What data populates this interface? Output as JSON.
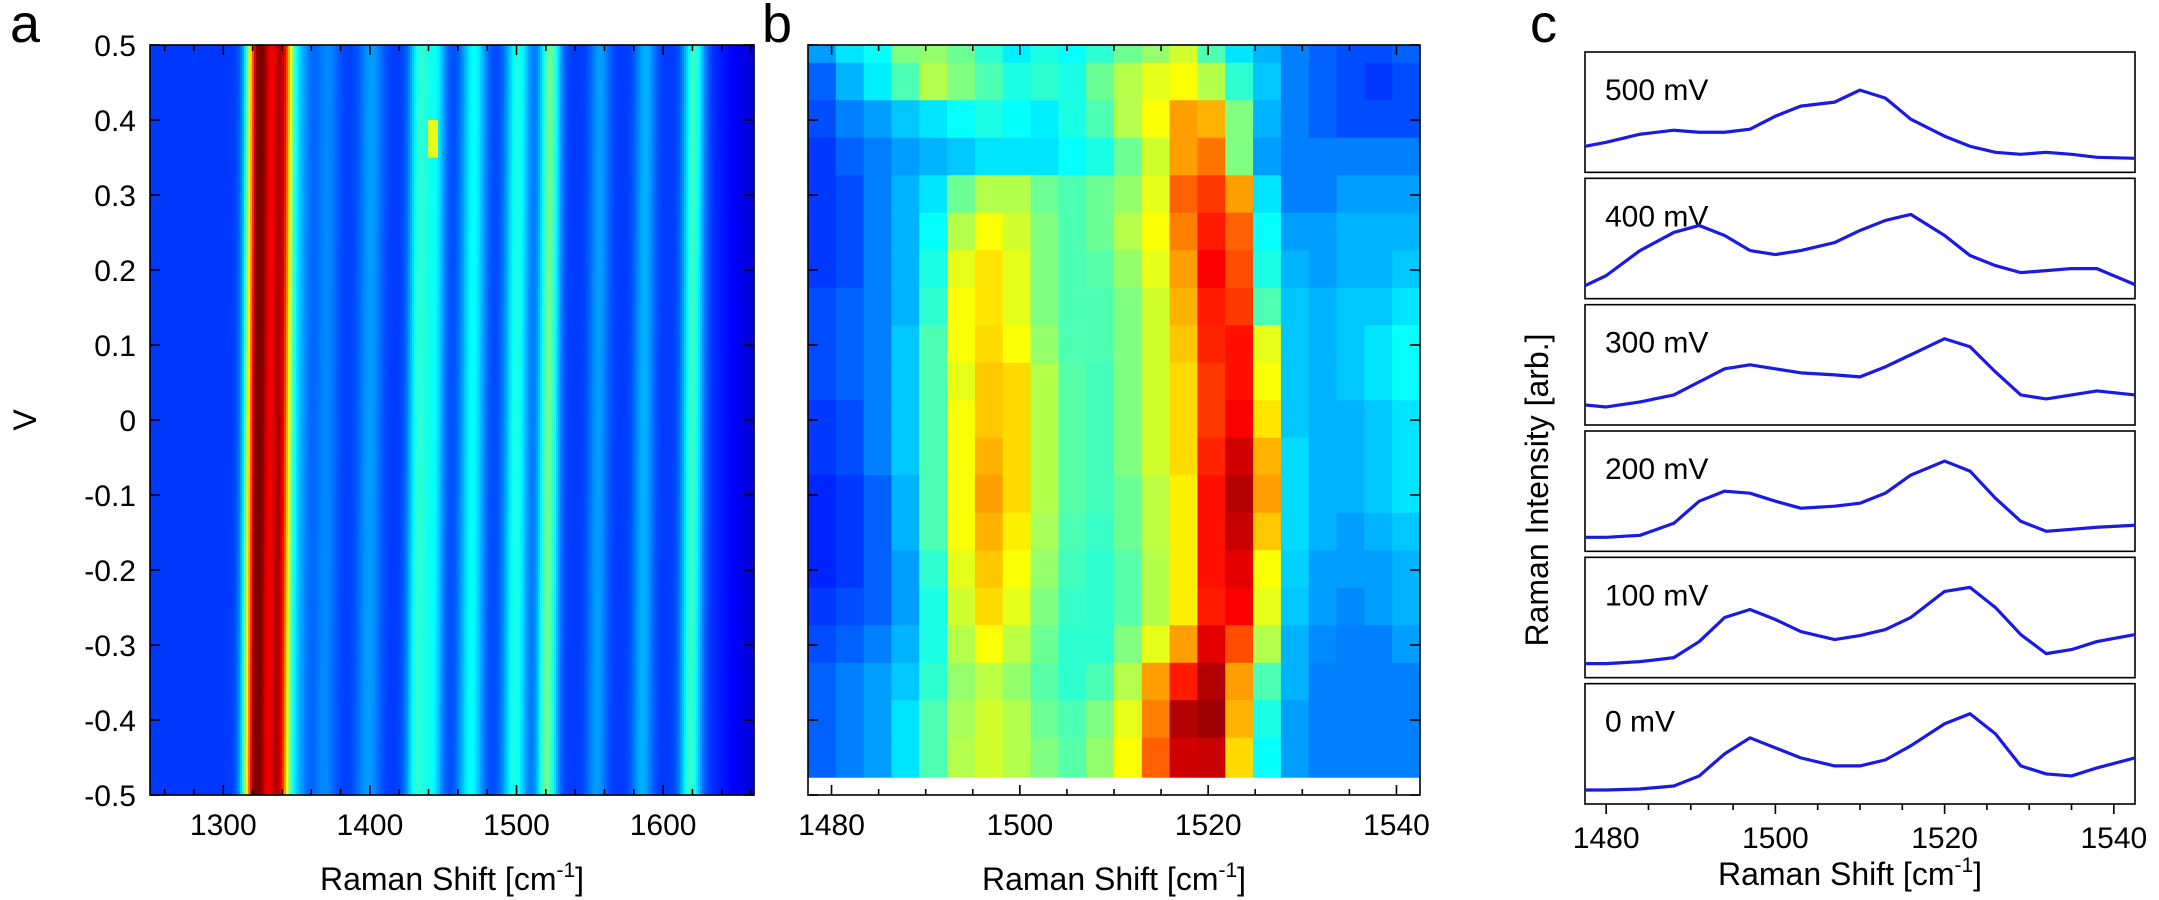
{
  "panels": {
    "a": "a",
    "b": "b",
    "c": "c"
  },
  "chart_data": [
    {
      "type": "heatmap",
      "panel": "a",
      "xlabel": "Raman Shift [cm⁻¹]",
      "xlabel_text": "Raman Shift [cm",
      "xlabel_sup": "-1",
      "xlabel_close": "]",
      "ylabel": "V",
      "xlim": [
        1250,
        1662
      ],
      "ylim": [
        -0.5,
        0.5
      ],
      "xticks": [
        1300,
        1400,
        1500,
        1600
      ],
      "xticklabels": [
        "1300",
        "1400",
        "1500",
        "1600"
      ],
      "yticks": [
        0.5,
        0.4,
        0.3,
        0.2,
        0.1,
        0,
        -0.1,
        -0.2,
        -0.3,
        -0.4,
        -0.5
      ],
      "yticklabels": [
        "0.5",
        "0.4",
        "0.3",
        "0.2",
        "0.1",
        "0",
        "-0.1",
        "-0.2",
        "-0.3",
        "-0.4",
        "-0.5"
      ],
      "colormap": "jet",
      "background_level": 0.18,
      "peaks": [
        {
          "x": 1322,
          "width": 5,
          "amplitude": 0.55
        },
        {
          "x": 1330,
          "width": 7,
          "amplitude": 0.5
        },
        {
          "x": 1340,
          "width": 5,
          "amplitude": 0.55
        },
        {
          "x": 1352,
          "width": 5,
          "amplitude": 0.1
        },
        {
          "x": 1370,
          "width": 6,
          "amplitude": 0.08
        },
        {
          "x": 1400,
          "width": 6,
          "amplitude": 0.1
        },
        {
          "x": 1433,
          "width": 5,
          "amplitude": 0.22
        },
        {
          "x": 1444,
          "width": 5,
          "amplitude": 0.18
        },
        {
          "x": 1470,
          "width": 6,
          "amplitude": 0.2
        },
        {
          "x": 1500,
          "width": 6,
          "amplitude": 0.22
        },
        {
          "x": 1522,
          "width": 5,
          "amplitude": 0.3
        },
        {
          "x": 1556,
          "width": 5,
          "amplitude": 0.1
        },
        {
          "x": 1587,
          "width": 5,
          "amplitude": 0.12
        },
        {
          "x": 1620,
          "width": 5,
          "amplitude": 0.25
        }
      ],
      "hotspot": {
        "x": 1443,
        "y": 0.37,
        "value": 0.6
      }
    },
    {
      "type": "heatmap",
      "panel": "b",
      "xlabel": "Raman Shift [cm⁻¹]",
      "xlabel_text": "Raman Shift [cm",
      "xlabel_sup": "-1",
      "xlabel_close": "]",
      "xlim": [
        1477.5,
        1542.5
      ],
      "ylim": [
        -0.5,
        0.5
      ],
      "xticks": [
        1480,
        1500,
        1520,
        1540
      ],
      "xticklabels": [
        "1480",
        "1500",
        "1520",
        "1540"
      ],
      "colormap": "jet",
      "columns_x": [
        1479,
        1482,
        1485,
        1488,
        1491,
        1494,
        1497,
        1500,
        1503,
        1506,
        1509,
        1512,
        1515,
        1518,
        1521,
        1524,
        1527,
        1530,
        1533,
        1536,
        1539,
        1542
      ],
      "rows_voltage": [
        0.5,
        0.45,
        0.4,
        0.35,
        0.3,
        0.25,
        0.2,
        0.15,
        0.1,
        0.05,
        0,
        -0.05,
        -0.1,
        -0.15,
        -0.2,
        -0.25,
        -0.3,
        -0.35,
        -0.4,
        -0.45
      ],
      "values": [
        [
          0.28,
          0.35,
          0.38,
          0.5,
          0.52,
          0.48,
          0.42,
          0.36,
          0.4,
          0.38,
          0.42,
          0.48,
          0.52,
          0.58,
          0.45,
          0.35,
          0.3,
          0.25,
          0.22,
          0.2,
          0.2,
          0.22
        ],
        [
          0.22,
          0.3,
          0.36,
          0.45,
          0.55,
          0.5,
          0.45,
          0.4,
          0.42,
          0.4,
          0.48,
          0.55,
          0.6,
          0.62,
          0.55,
          0.42,
          0.32,
          0.25,
          0.22,
          0.2,
          0.18,
          0.2
        ],
        [
          0.2,
          0.25,
          0.28,
          0.32,
          0.35,
          0.38,
          0.4,
          0.38,
          0.36,
          0.4,
          0.45,
          0.55,
          0.62,
          0.72,
          0.7,
          0.5,
          0.3,
          0.25,
          0.22,
          0.2,
          0.2,
          0.2
        ],
        [
          0.18,
          0.22,
          0.25,
          0.28,
          0.3,
          0.32,
          0.35,
          0.35,
          0.35,
          0.38,
          0.4,
          0.48,
          0.58,
          0.72,
          0.76,
          0.5,
          0.28,
          0.25,
          0.25,
          0.25,
          0.25,
          0.25
        ],
        [
          0.18,
          0.2,
          0.25,
          0.3,
          0.35,
          0.48,
          0.55,
          0.55,
          0.48,
          0.45,
          0.48,
          0.52,
          0.6,
          0.78,
          0.82,
          0.72,
          0.35,
          0.25,
          0.25,
          0.28,
          0.28,
          0.28
        ],
        [
          0.18,
          0.2,
          0.25,
          0.3,
          0.38,
          0.55,
          0.62,
          0.58,
          0.5,
          0.45,
          0.48,
          0.55,
          0.62,
          0.75,
          0.85,
          0.78,
          0.38,
          0.28,
          0.28,
          0.3,
          0.3,
          0.3
        ],
        [
          0.18,
          0.2,
          0.25,
          0.3,
          0.4,
          0.6,
          0.65,
          0.6,
          0.5,
          0.45,
          0.46,
          0.52,
          0.6,
          0.72,
          0.88,
          0.8,
          0.4,
          0.3,
          0.28,
          0.3,
          0.3,
          0.32
        ],
        [
          0.2,
          0.22,
          0.25,
          0.3,
          0.42,
          0.62,
          0.65,
          0.6,
          0.5,
          0.45,
          0.45,
          0.5,
          0.58,
          0.7,
          0.85,
          0.82,
          0.45,
          0.32,
          0.3,
          0.32,
          0.32,
          0.35
        ],
        [
          0.2,
          0.22,
          0.25,
          0.32,
          0.45,
          0.62,
          0.66,
          0.62,
          0.52,
          0.45,
          0.45,
          0.5,
          0.58,
          0.68,
          0.84,
          0.86,
          0.6,
          0.32,
          0.3,
          0.32,
          0.35,
          0.38
        ],
        [
          0.2,
          0.22,
          0.25,
          0.32,
          0.45,
          0.6,
          0.68,
          0.66,
          0.55,
          0.46,
          0.44,
          0.5,
          0.58,
          0.66,
          0.82,
          0.86,
          0.62,
          0.32,
          0.3,
          0.32,
          0.35,
          0.38
        ],
        [
          0.18,
          0.2,
          0.25,
          0.32,
          0.45,
          0.62,
          0.68,
          0.66,
          0.55,
          0.46,
          0.44,
          0.5,
          0.58,
          0.66,
          0.82,
          0.88,
          0.65,
          0.32,
          0.3,
          0.3,
          0.32,
          0.35
        ],
        [
          0.18,
          0.2,
          0.25,
          0.32,
          0.45,
          0.62,
          0.7,
          0.66,
          0.55,
          0.46,
          0.44,
          0.5,
          0.58,
          0.66,
          0.84,
          0.92,
          0.7,
          0.34,
          0.3,
          0.3,
          0.32,
          0.35
        ],
        [
          0.16,
          0.18,
          0.22,
          0.3,
          0.45,
          0.62,
          0.72,
          0.66,
          0.55,
          0.46,
          0.44,
          0.48,
          0.56,
          0.64,
          0.86,
          0.95,
          0.72,
          0.34,
          0.3,
          0.3,
          0.32,
          0.35
        ],
        [
          0.16,
          0.18,
          0.22,
          0.3,
          0.45,
          0.62,
          0.7,
          0.64,
          0.54,
          0.45,
          0.43,
          0.48,
          0.56,
          0.64,
          0.86,
          0.93,
          0.68,
          0.34,
          0.3,
          0.28,
          0.3,
          0.32
        ],
        [
          0.16,
          0.18,
          0.22,
          0.28,
          0.42,
          0.6,
          0.68,
          0.62,
          0.52,
          0.44,
          0.42,
          0.46,
          0.55,
          0.64,
          0.86,
          0.9,
          0.62,
          0.33,
          0.28,
          0.28,
          0.28,
          0.3
        ],
        [
          0.18,
          0.2,
          0.22,
          0.28,
          0.4,
          0.58,
          0.66,
          0.6,
          0.5,
          0.43,
          0.42,
          0.46,
          0.55,
          0.64,
          0.85,
          0.88,
          0.6,
          0.32,
          0.28,
          0.26,
          0.28,
          0.3
        ],
        [
          0.2,
          0.22,
          0.25,
          0.3,
          0.4,
          0.55,
          0.62,
          0.56,
          0.48,
          0.42,
          0.42,
          0.5,
          0.6,
          0.72,
          0.9,
          0.8,
          0.55,
          0.3,
          0.26,
          0.25,
          0.25,
          0.28
        ],
        [
          0.22,
          0.25,
          0.28,
          0.32,
          0.42,
          0.52,
          0.56,
          0.52,
          0.46,
          0.42,
          0.45,
          0.55,
          0.72,
          0.85,
          0.95,
          0.72,
          0.45,
          0.3,
          0.25,
          0.25,
          0.25,
          0.25
        ],
        [
          0.22,
          0.25,
          0.28,
          0.35,
          0.45,
          0.54,
          0.58,
          0.55,
          0.48,
          0.45,
          0.5,
          0.6,
          0.75,
          0.95,
          0.97,
          0.7,
          0.4,
          0.28,
          0.25,
          0.25,
          0.25,
          0.25
        ],
        [
          0.22,
          0.25,
          0.28,
          0.35,
          0.45,
          0.55,
          0.58,
          0.55,
          0.5,
          0.46,
          0.52,
          0.62,
          0.78,
          0.92,
          0.93,
          0.66,
          0.38,
          0.28,
          0.25,
          0.25,
          0.25,
          0.25
        ]
      ]
    },
    {
      "type": "line",
      "panel": "c",
      "xlabel": "Raman Shift [cm⁻¹]",
      "xlabel_text": "Raman Shift [cm",
      "xlabel_sup": "-1",
      "xlabel_close": "]",
      "ylabel": "Raman Intensity [arb.]",
      "xlim": [
        1477.5,
        1542.5
      ],
      "xticks": [
        1480,
        1500,
        1520,
        1540
      ],
      "xticklabels": [
        "1480",
        "1500",
        "1520",
        "1540"
      ],
      "x": [
        1477.5,
        1480,
        1484,
        1488,
        1491,
        1494,
        1497,
        1500,
        1503,
        1507,
        1510,
        1513,
        1516,
        1520,
        1523,
        1526,
        1529,
        1532,
        1535,
        1538,
        1542.5
      ],
      "series": [
        {
          "name": "500 mV",
          "values": [
            0.18,
            0.22,
            0.3,
            0.34,
            0.32,
            0.32,
            0.35,
            0.48,
            0.58,
            0.62,
            0.74,
            0.66,
            0.45,
            0.28,
            0.18,
            0.12,
            0.1,
            0.12,
            0.1,
            0.07,
            0.06
          ]
        },
        {
          "name": "400 mV",
          "values": [
            0.05,
            0.15,
            0.4,
            0.58,
            0.65,
            0.55,
            0.4,
            0.36,
            0.4,
            0.48,
            0.6,
            0.7,
            0.76,
            0.55,
            0.35,
            0.25,
            0.18,
            0.2,
            0.22,
            0.22,
            0.06
          ]
        },
        {
          "name": "300 mV",
          "values": [
            0.12,
            0.1,
            0.15,
            0.22,
            0.35,
            0.48,
            0.52,
            0.48,
            0.44,
            0.42,
            0.4,
            0.5,
            0.62,
            0.78,
            0.7,
            0.45,
            0.22,
            0.18,
            0.22,
            0.26,
            0.22
          ]
        },
        {
          "name": "200 mV",
          "values": [
            0.06,
            0.06,
            0.08,
            0.2,
            0.42,
            0.52,
            0.5,
            0.42,
            0.35,
            0.37,
            0.4,
            0.5,
            0.68,
            0.82,
            0.72,
            0.45,
            0.22,
            0.12,
            0.14,
            0.16,
            0.18
          ]
        },
        {
          "name": "100 mV",
          "values": [
            0.06,
            0.06,
            0.08,
            0.12,
            0.28,
            0.52,
            0.6,
            0.5,
            0.38,
            0.3,
            0.34,
            0.4,
            0.52,
            0.78,
            0.82,
            0.62,
            0.35,
            0.16,
            0.2,
            0.28,
            0.35
          ]
        },
        {
          "name": "0 mV",
          "values": [
            0.06,
            0.06,
            0.07,
            0.1,
            0.2,
            0.42,
            0.58,
            0.48,
            0.38,
            0.3,
            0.3,
            0.36,
            0.5,
            0.72,
            0.82,
            0.62,
            0.3,
            0.22,
            0.2,
            0.28,
            0.38
          ]
        }
      ]
    }
  ]
}
